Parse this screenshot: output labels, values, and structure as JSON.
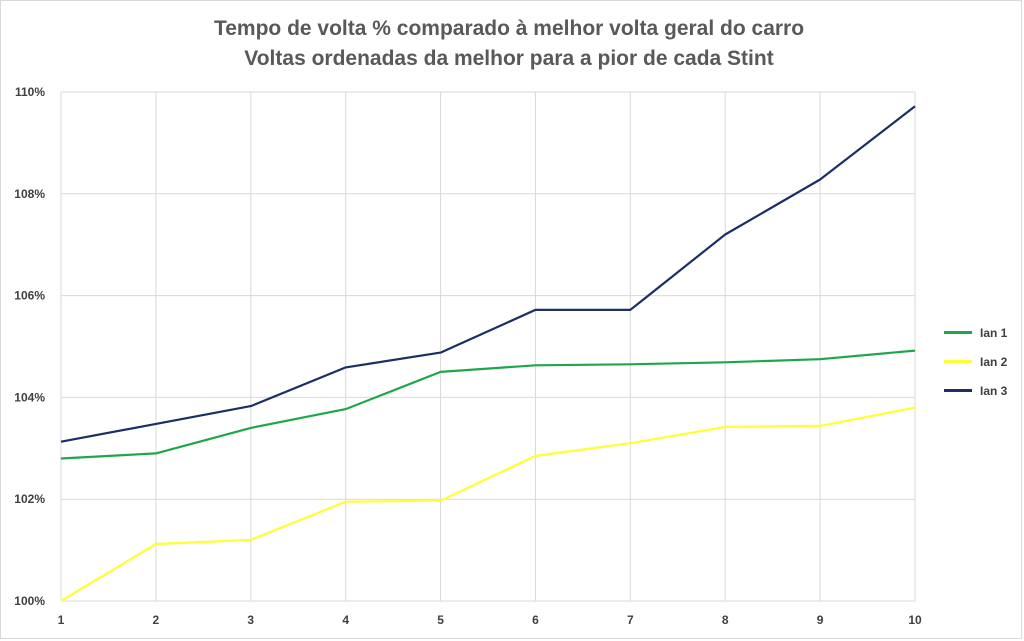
{
  "chart_data": {
    "type": "line",
    "title": "Tempo de volta % comparado à melhor volta geral do carro",
    "subtitle": "Voltas ordenadas da melhor para a pior de cada Stint",
    "x": [
      1,
      2,
      3,
      4,
      5,
      6,
      7,
      8,
      9,
      10
    ],
    "x_tick_labels": [
      "1",
      "2",
      "3",
      "4",
      "5",
      "6",
      "7",
      "8",
      "9",
      "10"
    ],
    "ylim": [
      100,
      110
    ],
    "y_ticks": [
      100,
      102,
      104,
      106,
      108,
      110
    ],
    "y_tick_labels": [
      "100%",
      "102%",
      "104%",
      "106%",
      "108%",
      "110%"
    ],
    "grid": true,
    "legend_position": "right",
    "series": [
      {
        "name": "Ian 1",
        "color": "#1fa64a",
        "values": [
          102.8,
          102.9,
          103.4,
          103.77,
          104.5,
          104.63,
          104.65,
          104.69,
          104.75,
          104.92
        ]
      },
      {
        "name": "Ian 2",
        "color": "#ffff33",
        "values": [
          100.0,
          101.12,
          101.2,
          101.95,
          101.97,
          102.85,
          103.1,
          103.42,
          103.44,
          103.8
        ]
      },
      {
        "name": "Ian 3",
        "color": "#1b2f66",
        "values": [
          103.13,
          103.48,
          103.83,
          104.59,
          104.88,
          105.72,
          105.72,
          107.2,
          108.28,
          109.72
        ]
      }
    ]
  }
}
